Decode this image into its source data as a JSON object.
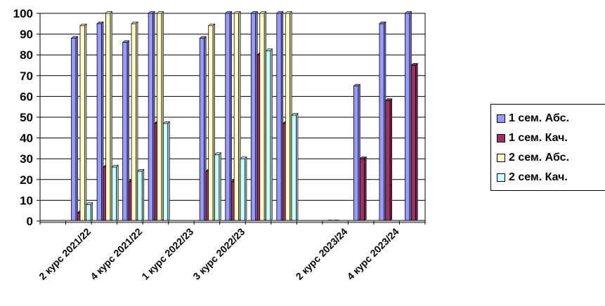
{
  "chart_data": {
    "type": "bar",
    "title": "",
    "xlabel": "",
    "ylabel": "",
    "ylim": [
      0,
      100
    ],
    "yticks": [
      0,
      10,
      20,
      30,
      40,
      50,
      60,
      70,
      80,
      90,
      100
    ],
    "grid": true,
    "legend_position": "right",
    "categories": [
      "",
      "2 курс 2021/22",
      "",
      "4 курс 2021/22",
      "",
      "1 курс 2022/23",
      "",
      "3 курс 2022/23",
      "",
      "",
      "",
      "2 курс 2023/24",
      "",
      "4 курс 2023/24",
      ""
    ],
    "series": [
      {
        "name": "1 сем. Абс.",
        "color": "#9999ff",
        "values": [
          null,
          88,
          95,
          86,
          100,
          null,
          88,
          100,
          100,
          100,
          null,
          0,
          65,
          95,
          100
        ]
      },
      {
        "name": "1 сем. Кач.",
        "color": "#993366",
        "values": [
          null,
          4,
          26,
          19,
          47,
          null,
          24,
          19,
          80,
          47,
          null,
          0,
          30,
          58,
          75
        ]
      },
      {
        "name": "2 сем. Абс.",
        "color": "#ffffcc",
        "values": [
          null,
          94,
          100,
          95,
          100,
          null,
          94,
          100,
          100,
          100,
          null,
          null,
          null,
          null,
          null
        ]
      },
      {
        "name": "2 сем. Кач.",
        "color": "#ccffff",
        "values": [
          null,
          8,
          26,
          24,
          47,
          null,
          32,
          30,
          82,
          51,
          null,
          null,
          null,
          null,
          null
        ]
      }
    ]
  }
}
